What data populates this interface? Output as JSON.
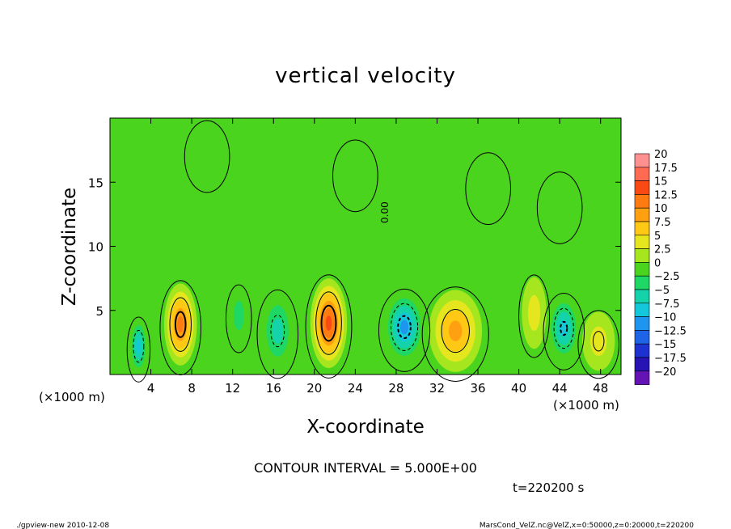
{
  "chart_data": {
    "type": "heatmap",
    "title": "vertical velocity",
    "xlabel": "X-coordinate",
    "ylabel": "Z-coordinate",
    "x_unit": "(×1000 m)",
    "y_unit": "(×1000 m)",
    "xlim": [
      0,
      50
    ],
    "ylim": [
      0,
      20
    ],
    "x_ticks": [
      4,
      8,
      12,
      16,
      20,
      24,
      28,
      32,
      36,
      40,
      44,
      48
    ],
    "y_ticks": [
      5,
      10,
      15
    ],
    "contour_interval_text": "CONTOUR INTERVAL = 5.000E+00",
    "contour_label": "0.00",
    "time_text": "t=220200 s",
    "colorbar": {
      "levels": [
        "20",
        "17.5",
        "15",
        "12.5",
        "10",
        "7.5",
        "5",
        "2.5",
        "0",
        "−2.5",
        "−5",
        "−7.5",
        "−10",
        "−12.5",
        "−15",
        "−17.5",
        "−20"
      ],
      "colors": [
        "#ff9090",
        "#ff6a52",
        "#fa4a14",
        "#ff7a10",
        "#ffa010",
        "#ffc814",
        "#e6e61e",
        "#a6e61e",
        "#4bd41e",
        "#1ed764",
        "#14d2aa",
        "#14c8dc",
        "#1e96f0",
        "#1e64e6",
        "#1e32d2",
        "#2814b4",
        "#6414b4"
      ],
      "background": "#4bd41e"
    },
    "cells": [
      {
        "x": 2.8,
        "z": 2.2,
        "rx": 0.9,
        "rz": 2.2,
        "w": -9
      },
      {
        "x": 6.9,
        "z": 3.9,
        "rx": 1.6,
        "rz": 3.2,
        "w": 12
      },
      {
        "x": 12.6,
        "z": 4.6,
        "rx": 1.0,
        "rz": 2.3,
        "w": -4
      },
      {
        "x": 16.4,
        "z": 3.4,
        "rx": 1.6,
        "rz": 3.0,
        "w": -6
      },
      {
        "x": 21.4,
        "z": 4.0,
        "rx": 1.8,
        "rz": 3.5,
        "w": 14
      },
      {
        "x": 28.8,
        "z": 3.7,
        "rx": 2.0,
        "rz": 2.8,
        "w": -12
      },
      {
        "x": 33.8,
        "z": 3.4,
        "rx": 2.6,
        "rz": 3.2,
        "w": 8
      },
      {
        "x": 41.5,
        "z": 4.8,
        "rx": 1.2,
        "rz": 2.8,
        "w": 3
      },
      {
        "x": 44.4,
        "z": 3.6,
        "rx": 1.6,
        "rz": 2.6,
        "w": -10
      },
      {
        "x": 47.8,
        "z": 2.6,
        "rx": 1.6,
        "rz": 2.3,
        "w": 5
      }
    ]
  },
  "footer": {
    "left": "./gpview-new   2010-12-08",
    "right": "MarsCond_VelZ.nc@VelZ,x=0:50000,z=0:20000,t=220200"
  }
}
